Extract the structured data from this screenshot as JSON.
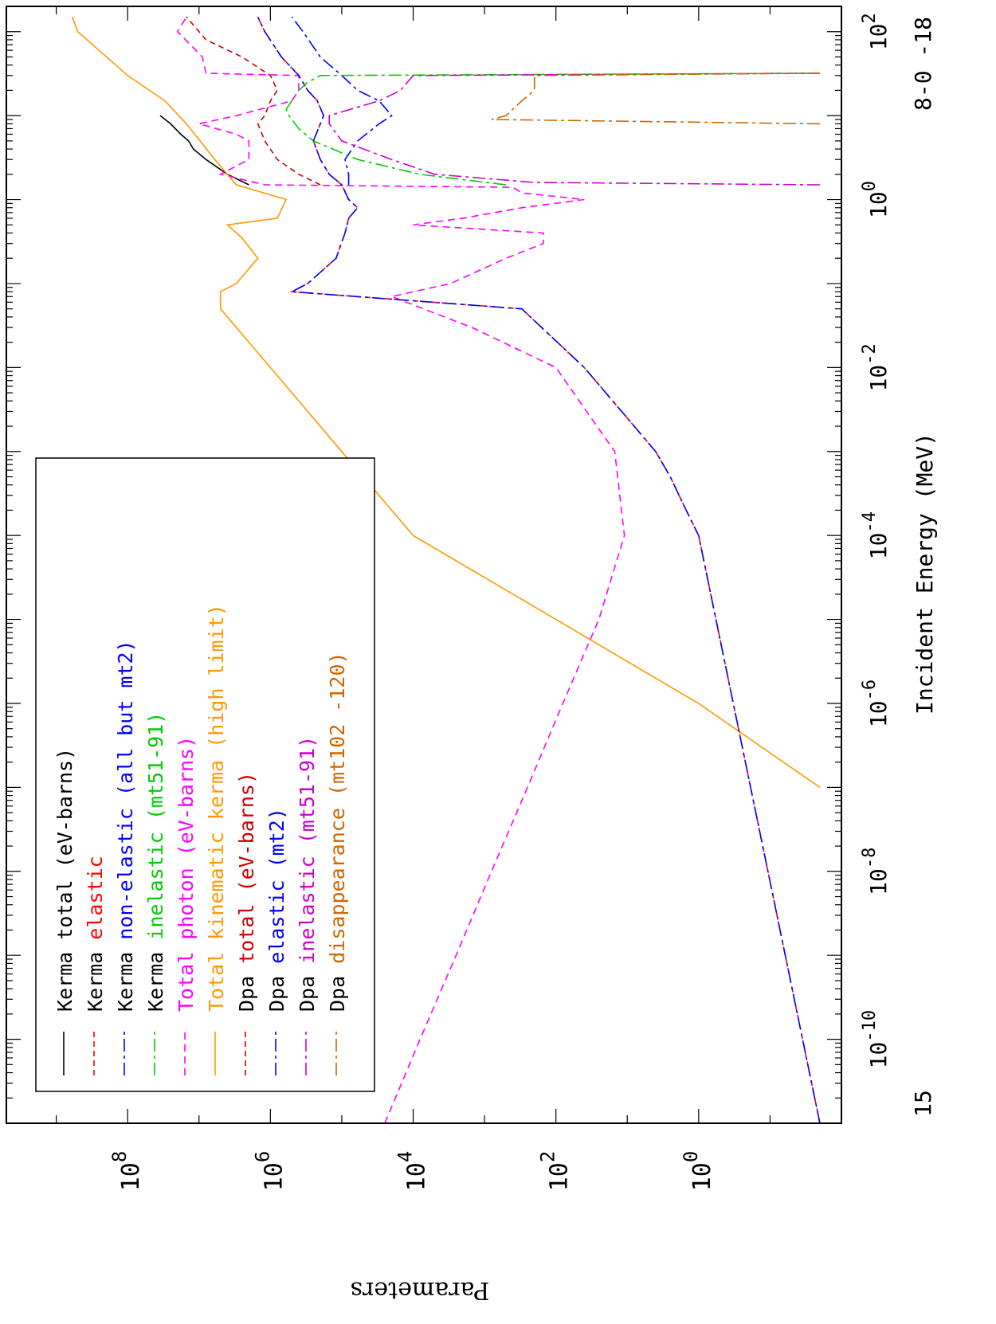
{
  "chart_data": {
    "type": "line",
    "orientation": "rotated 90 degrees clockwise (x axis runs top to bottom)",
    "xlabel": "Incident Energy (MeV)",
    "ylabel": "Parameters",
    "x_scale": "log",
    "y_scale": "log",
    "xlim": [
      1e-11,
      200
    ],
    "ylim": [
      0.01,
      5000000000.0
    ],
    "x_tick_labels": [
      {
        "base": "10",
        "exp": "-10",
        "value": 1e-10
      },
      {
        "base": "10",
        "exp": "-8",
        "value": 1e-08
      },
      {
        "base": "10",
        "exp": "-6",
        "value": 1e-06
      },
      {
        "base": "10",
        "exp": "-4",
        "value": 0.0001
      },
      {
        "base": "10",
        "exp": "-2",
        "value": 0.01
      },
      {
        "base": "10",
        "exp": "0",
        "value": 1
      },
      {
        "base": "10",
        "exp": "2",
        "value": 100
      }
    ],
    "y_tick_labels": [
      {
        "base": "10",
        "exp": "0",
        "value": 1
      },
      {
        "base": "10",
        "exp": "2",
        "value": 100
      },
      {
        "base": "10",
        "exp": "4",
        "value": 10000
      },
      {
        "base": "10",
        "exp": "6",
        "value": 1000000
      },
      {
        "base": "10",
        "exp": "8",
        "value": 100000000
      }
    ],
    "annotations": {
      "left": "15",
      "right": "8-0 -18"
    },
    "legend_position": "lower-left of the plot, drawn rotated with the page",
    "series": [
      {
        "name": "Kerma total  (eV-barns)",
        "label_a": "Kerma total  (eV-barns)",
        "label_b": "",
        "color_a": "#000000",
        "color_b": "#000000",
        "color": "#000000",
        "dash": "",
        "points": [
          [
            1.5,
            2000000
          ],
          [
            2,
            4000000
          ],
          [
            3,
            8000000
          ],
          [
            4,
            12000000
          ],
          [
            5,
            14000000
          ],
          [
            6,
            18000000
          ],
          [
            8,
            25000000
          ],
          [
            10,
            35000000
          ]
        ]
      },
      {
        "name": "Kerma elastic",
        "label_a": "Kerma ",
        "label_b": "elastic",
        "color_a": "#000000",
        "color_b": "#ff0000",
        "color": "#ff0000",
        "dash": "7,5",
        "points": [
          [
            1e-11,
            0.02
          ],
          [
            0.0001,
            1
          ],
          [
            0.0002,
            1.5
          ],
          [
            0.0005,
            2.5
          ],
          [
            0.001,
            4
          ],
          [
            0.01,
            40
          ],
          [
            0.05,
            300
          ],
          [
            0.08,
            500000
          ],
          [
            0.1,
            300000
          ],
          [
            0.2,
            120000
          ],
          [
            0.4,
            90000
          ],
          [
            0.6,
            80000
          ],
          [
            0.8,
            60000
          ],
          [
            1,
            80000
          ],
          [
            1.5,
            100000
          ],
          [
            2,
            150000
          ],
          [
            3,
            200000
          ],
          [
            5,
            250000
          ],
          [
            8,
            200000
          ],
          [
            10,
            180000
          ],
          [
            15,
            220000
          ],
          [
            20,
            300000
          ],
          [
            30,
            400000
          ],
          [
            50,
            700000
          ],
          [
            100,
            1200000
          ],
          [
            150,
            1500000
          ]
        ]
      },
      {
        "name": "Kerma non-elastic (all but mt2)",
        "label_a": "Kerma ",
        "label_b": "non-elastic (all but mt2)",
        "color_a": "#000000",
        "color_b": "#0000ff",
        "color": "#0000ff",
        "dash": "16,5,4,5",
        "points": [
          [
            1.5,
            80000
          ],
          [
            2,
            80000
          ],
          [
            3,
            90000
          ],
          [
            5,
            60000
          ],
          [
            8,
            30000
          ],
          [
            10,
            20000
          ],
          [
            15,
            30000
          ],
          [
            20,
            60000
          ],
          [
            30,
            100000
          ],
          [
            50,
            200000
          ],
          [
            100,
            350000
          ],
          [
            150,
            500000
          ]
        ]
      },
      {
        "name": "Kerma inelastic (mt51-91)",
        "label_a": "Kerma ",
        "label_b": "inelastic (mt51-91)",
        "color_a": "#000000",
        "color_b": "#00cc00",
        "color": "#00cc00",
        "dash": "16,5,4,5",
        "points": [
          [
            1.5,
            500
          ],
          [
            2,
            8000
          ],
          [
            3,
            60000
          ],
          [
            5,
            250000
          ],
          [
            7,
            400000
          ],
          [
            10,
            550000
          ],
          [
            12,
            600000
          ],
          [
            15,
            500000
          ],
          [
            20,
            400000
          ],
          [
            25,
            300000
          ],
          [
            30,
            200000
          ],
          [
            32,
            0.02
          ]
        ]
      },
      {
        "name": "Total photon (eV-barns)",
        "label_a": "Total photon (eV-barns)",
        "label_b": "",
        "color_a": "#ff00ff",
        "color_b": "#ff00ff",
        "color": "#ff00ff",
        "dash": "9,6",
        "points": [
          [
            1e-11,
            25000
          ],
          [
            1e-10,
            8000
          ],
          [
            1e-09,
            2500
          ],
          [
            1e-08,
            800
          ],
          [
            1e-07,
            250
          ],
          [
            1e-06,
            80
          ],
          [
            1e-05,
            25
          ],
          [
            0.0001,
            11
          ],
          [
            0.001,
            15
          ],
          [
            0.01,
            100
          ],
          [
            0.03,
            1500
          ],
          [
            0.07,
            20000
          ],
          [
            0.1,
            3000
          ],
          [
            0.2,
            500
          ],
          [
            0.3,
            150
          ],
          [
            0.4,
            150
          ],
          [
            0.5,
            10000
          ],
          [
            0.6,
            2000
          ],
          [
            0.8,
            300
          ],
          [
            1,
            40
          ],
          [
            1.2,
            300
          ],
          [
            1.4,
            400
          ],
          [
            1.5,
            1200000
          ],
          [
            2,
            5000000
          ],
          [
            3,
            2000000
          ],
          [
            5,
            2000000
          ],
          [
            6,
            3000000
          ],
          [
            8,
            10000000
          ],
          [
            10,
            3000000
          ],
          [
            15,
            500000
          ],
          [
            20,
            400000
          ],
          [
            25,
            400000
          ],
          [
            30,
            400000
          ],
          [
            32,
            8000000
          ],
          [
            50,
            9000000
          ],
          [
            100,
            20000000
          ],
          [
            150,
            15000000
          ]
        ]
      },
      {
        "name": "Total kinematic kerma (high limit)",
        "label_a": "Total kinematic kerma (high limit)",
        "label_b": "",
        "color_a": "#ff9900",
        "color_b": "#ff9900",
        "color": "#ff9900",
        "dash": "",
        "points": [
          [
            1e-07,
            0.02
          ],
          [
            1e-06,
            1
          ],
          [
            1e-05,
            100
          ],
          [
            0.0001,
            10000
          ],
          [
            0.001,
            100000
          ],
          [
            0.01,
            1000000
          ],
          [
            0.05,
            5000000
          ],
          [
            0.08,
            5000000
          ],
          [
            0.1,
            3000000
          ],
          [
            0.2,
            1500000
          ],
          [
            0.35,
            2500000
          ],
          [
            0.5,
            4000000
          ],
          [
            0.6,
            800000
          ],
          [
            1,
            600000
          ],
          [
            1.5,
            3000000
          ],
          [
            3,
            6000000
          ],
          [
            8,
            15000000
          ],
          [
            15,
            30000000
          ],
          [
            30,
            100000000
          ],
          [
            100,
            500000000
          ],
          [
            150,
            600000000
          ]
        ]
      },
      {
        "name": "Dpa total (eV-barns)",
        "label_a": "Dpa ",
        "label_b": "total (eV-barns)",
        "color_a": "#000000",
        "color_b": "#cc0000",
        "color": "#cc0000",
        "dash": "7,5",
        "points": [
          [
            1.5,
            200000
          ],
          [
            2,
            400000
          ],
          [
            3,
            800000
          ],
          [
            5,
            1200000
          ],
          [
            8,
            1500000
          ],
          [
            10,
            1200000
          ],
          [
            15,
            1000000
          ],
          [
            20,
            800000
          ],
          [
            30,
            1000000
          ],
          [
            50,
            2500000
          ],
          [
            80,
            8000000
          ],
          [
            150,
            15000000
          ]
        ]
      },
      {
        "name": "Dpa elastic (mt2)",
        "label_a": "Dpa ",
        "label_b": "elastic (mt2)",
        "color_a": "#000000",
        "color_b": "#0000ff",
        "color": "#0000ff",
        "dash": "16,5,4,5",
        "points": [
          [
            1e-11,
            0.02
          ],
          [
            0.0001,
            1
          ],
          [
            0.0002,
            1.5
          ],
          [
            0.0005,
            2.5
          ],
          [
            0.001,
            4
          ],
          [
            0.01,
            40
          ],
          [
            0.05,
            300
          ],
          [
            0.08,
            500000
          ],
          [
            0.1,
            300000
          ],
          [
            0.2,
            120000
          ],
          [
            0.4,
            90000
          ],
          [
            0.6,
            80000
          ],
          [
            0.8,
            60000
          ],
          [
            1,
            80000
          ],
          [
            1.5,
            100000
          ],
          [
            2,
            150000
          ],
          [
            3,
            200000
          ],
          [
            5,
            250000
          ],
          [
            8,
            200000
          ],
          [
            10,
            180000
          ],
          [
            15,
            220000
          ],
          [
            20,
            300000
          ],
          [
            30,
            400000
          ],
          [
            50,
            700000
          ],
          [
            100,
            1200000
          ],
          [
            150,
            1500000
          ]
        ]
      },
      {
        "name": "Dpa inelastic (mt51-91)",
        "label_a": "Dpa ",
        "label_b": "inelastic (mt51-91)",
        "color_a": "#000000",
        "color_b": "#cc00cc",
        "color": "#cc00cc",
        "dash": "16,5,4,5",
        "points": [
          [
            1.5,
            0.02
          ],
          [
            1.6,
            200
          ],
          [
            2,
            5000
          ],
          [
            3,
            20000
          ],
          [
            5,
            100000
          ],
          [
            8,
            150000
          ],
          [
            10,
            150000
          ],
          [
            15,
            30000
          ],
          [
            20,
            15000
          ],
          [
            30,
            10000
          ],
          [
            32,
            0.02
          ]
        ]
      },
      {
        "name": "Dpa disappearance (mt102 -120)",
        "label_a": "Dpa ",
        "label_b": "disappearance (mt102 -120)",
        "color_a": "#000000",
        "color_b": "#cc6600",
        "color": "#cc6600",
        "dash": "16,5,4,5",
        "points": [
          [
            8,
            0.02
          ],
          [
            9,
            800
          ],
          [
            10,
            500
          ],
          [
            15,
            300
          ],
          [
            20,
            200
          ],
          [
            30,
            200
          ],
          [
            32,
            0.02
          ]
        ]
      }
    ]
  }
}
